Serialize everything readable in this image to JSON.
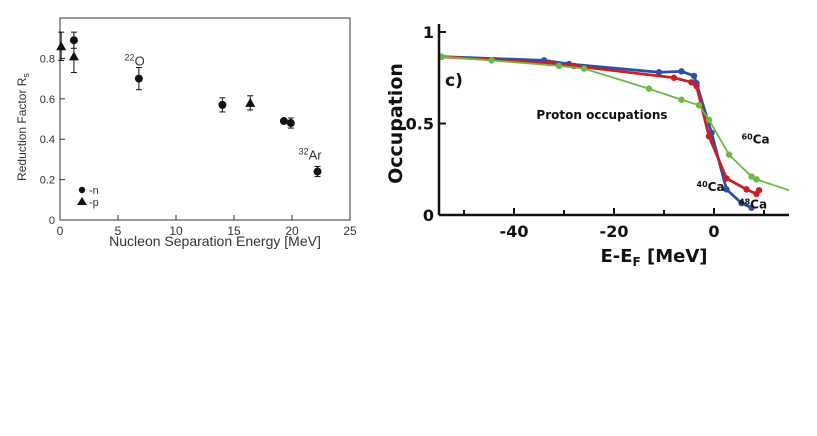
{
  "chart_data": [
    {
      "type": "scatter",
      "title": "",
      "xlabel": "Nucleon Separation Energy  [MeV]",
      "ylabel": "Reduction Factor R",
      "ylabel_sub": "s",
      "xlim": [
        0,
        25
      ],
      "ylim": [
        0,
        1.0
      ],
      "x_ticks": [
        "0",
        "5",
        "10",
        "15",
        "20",
        "25"
      ],
      "y_ticks": [
        "0",
        "0.2",
        "0.4",
        "0.6",
        "0.8"
      ],
      "grid": false,
      "legend_position": "bottom-left",
      "series": [
        {
          "name": "-n",
          "marker": "circle",
          "points": [
            {
              "x": 1.2,
              "y": 0.89,
              "err": 0.04
            },
            {
              "x": 6.8,
              "y": 0.7,
              "err": 0.055
            },
            {
              "x": 14.0,
              "y": 0.57,
              "err": 0.035
            },
            {
              "x": 19.3,
              "y": 0.49,
              "err": 0.01
            },
            {
              "x": 19.9,
              "y": 0.48,
              "err": 0.025
            },
            {
              "x": 22.2,
              "y": 0.24,
              "err": 0.025
            }
          ]
        },
        {
          "name": "-p",
          "marker": "triangle",
          "points": [
            {
              "x": 0.1,
              "y": 0.86,
              "err": 0.07
            },
            {
              "x": 1.2,
              "y": 0.81,
              "err": 0.08
            },
            {
              "x": 16.4,
              "y": 0.58,
              "err": 0.035
            }
          ]
        }
      ],
      "annotations": [
        {
          "sup": "22",
          "text": "O",
          "x": 6.6,
          "y": 0.79
        },
        {
          "sup": "32",
          "text": "Ar",
          "x": 21.6,
          "y": 0.325
        }
      ]
    },
    {
      "type": "line",
      "title": "",
      "panel_label": "c)",
      "annotation": "Proton occupations",
      "xlabel": "E-E",
      "xlabel_sub": "F",
      "xlabel_unit": " [MeV]",
      "ylabel": "Occupation",
      "xlim": [
        -55,
        15
      ],
      "ylim": [
        0,
        1.0
      ],
      "x_ticks": [
        "-40",
        "-20",
        "0"
      ],
      "x_tick_values": [
        -40,
        -20,
        0
      ],
      "y_ticks": [
        "0",
        "0.5",
        "1"
      ],
      "y_tick_values": [
        0,
        0.5,
        1
      ],
      "grid": false,
      "series": [
        {
          "name": "40Ca",
          "label_sup": "40",
          "label": "Ca",
          "color": "#2e4fa3",
          "label_at": [
            -3.5,
            0.13
          ],
          "x": [
            -54.5,
            -34,
            -29,
            -11,
            -6.5,
            -4,
            -3.5,
            -0.5,
            2.5,
            5.5,
            7.5
          ],
          "y": [
            0.865,
            0.845,
            0.825,
            0.78,
            0.785,
            0.76,
            0.72,
            0.45,
            0.14,
            0.065,
            0.04
          ]
        },
        {
          "name": "48Ca",
          "label_sup": "48",
          "label": "Ca",
          "color": "#c8202a",
          "label_at": [
            5.0,
            0.035
          ],
          "x": [
            -54.5,
            -33,
            -28,
            -8,
            -4.5,
            -3.5,
            -1,
            2.5,
            6.5,
            8.5,
            9.0
          ],
          "y": [
            0.865,
            0.83,
            0.815,
            0.75,
            0.725,
            0.705,
            0.43,
            0.2,
            0.14,
            0.115,
            0.135
          ]
        },
        {
          "name": "60Ca",
          "label_sup": "60",
          "label": "Ca",
          "color": "#6cbb45",
          "label_at": [
            5.5,
            0.39
          ],
          "x": [
            -54.5,
            -44.5,
            -31,
            -26,
            -13,
            -6.5,
            -3.0,
            -1,
            3.0,
            7.5,
            8.5,
            15
          ],
          "y": [
            0.865,
            0.845,
            0.815,
            0.8,
            0.69,
            0.63,
            0.6,
            0.52,
            0.33,
            0.21,
            0.195,
            0.135
          ]
        }
      ]
    }
  ]
}
